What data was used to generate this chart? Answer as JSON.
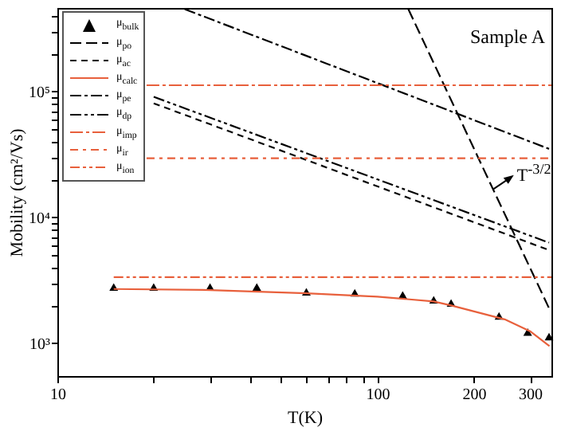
{
  "chart_data": {
    "type": "line",
    "xlabel": "T(K)",
    "ylabel": "Mobility (cm²/Vs)",
    "log": "xy",
    "grid": false,
    "legend": "top left",
    "xlim": [
      10,
      350
    ],
    "xticks": [
      10,
      {
        "value": 20,
        "label": null
      },
      {
        "value": 30,
        "label": null
      },
      {
        "value": 40,
        "label": null
      },
      {
        "value": 50,
        "label": null
      },
      {
        "value": 60,
        "label": null
      },
      {
        "value": 70,
        "label": null
      },
      {
        "value": 80,
        "label": null
      },
      {
        "value": 90,
        "label": null
      },
      100,
      200,
      300
    ],
    "ylim": [
      550,
      460000
    ],
    "yticks": [
      {
        "value": 1000,
        "label": "10³"
      },
      {
        "value": 2000,
        "label": null
      },
      {
        "value": 3000,
        "label": null
      },
      {
        "value": 4000,
        "label": null
      },
      {
        "value": 5000,
        "label": null
      },
      {
        "value": 6000,
        "label": null
      },
      {
        "value": 7000,
        "label": null
      },
      {
        "value": 8000,
        "label": null
      },
      {
        "value": 9000,
        "label": null
      },
      {
        "value": 10000,
        "label": "10⁴"
      },
      {
        "value": 20000,
        "label": null
      },
      {
        "value": 30000,
        "label": null
      },
      {
        "value": 40000,
        "label": null
      },
      {
        "value": 50000,
        "label": null
      },
      {
        "value": 60000,
        "label": null
      },
      {
        "value": 70000,
        "label": null
      },
      {
        "value": 80000,
        "label": null
      },
      {
        "value": 90000,
        "label": null
      },
      {
        "value": 100000,
        "label": "10⁵"
      },
      {
        "value": 200000,
        "label": null
      },
      {
        "value": 300000,
        "label": null
      },
      {
        "value": 400000,
        "label": null
      }
    ],
    "series": [
      {
        "name": "μ$_{bulk}$",
        "type": "scatter",
        "marker": "triangle",
        "color": "#000000",
        "x": [
          15,
          20,
          30,
          42,
          60,
          85,
          120,
          150,
          170,
          240,
          295,
          344
        ],
        "values": [
          2800,
          2800,
          2800,
          2800,
          2570,
          2520,
          2420,
          2220,
          2090,
          1650,
          1230,
          1130
        ]
      },
      {
        "name": "μ$_{po}$",
        "line_style": "dashed",
        "color": "#000000",
        "x": [
          125,
          344
        ],
        "values": [
          450000,
          1900
        ]
      },
      {
        "name": "μ$_{ac}$",
        "line_style": "dashed",
        "color": "#000000",
        "x": [
          20,
          344
        ],
        "values": [
          80500,
          5500
        ]
      },
      {
        "name": "μ$_{calc}$",
        "line_style": "solid",
        "color": "#e8603c",
        "x": [
          15,
          30,
          60,
          100,
          150,
          170,
          250,
          300,
          345
        ],
        "values": [
          2700,
          2650,
          2500,
          2350,
          2150,
          2000,
          1550,
          1250,
          950
        ]
      },
      {
        "name": "μ$_{pe}$",
        "line_style": "dashed",
        "color": "#000000",
        "x": [
          25,
          344
        ],
        "values": [
          450000,
          35000
        ]
      },
      {
        "name": "μ$_{dp}$",
        "line_style": "dashed",
        "color": "#000000",
        "x": [
          20,
          344
        ],
        "values": [
          90600,
          6300
        ]
      },
      {
        "name": "μ$_{imp}$",
        "line_style": "dashed",
        "color": "#e8603c",
        "x": [
          19,
          350
        ],
        "values": [
          112000,
          112000
        ]
      },
      {
        "name": "μ$_{ir}$",
        "line_style": "dashed",
        "color": "#e8603c",
        "x": [
          19,
          350
        ],
        "values": [
          29500,
          29500
        ]
      },
      {
        "name": "μ$_{ion}$",
        "line_style": "dashed",
        "color": "#e8603c",
        "x": [
          15,
          350
        ],
        "values": [
          3350,
          3350
        ]
      }
    ],
    "annotations": [
      "Sample A",
      {
        "text": "T$^{-3/2}$",
        "x": 230,
        "y": 16700
      }
    ]
  }
}
